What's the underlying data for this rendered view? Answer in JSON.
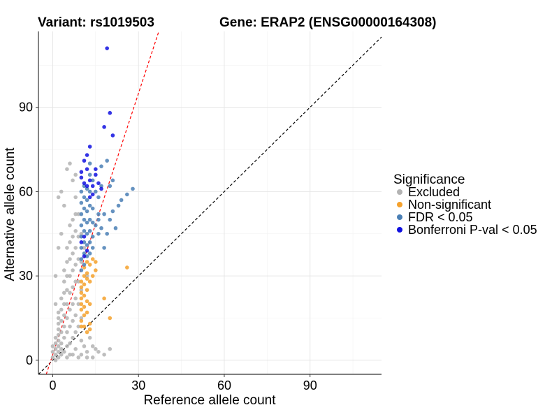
{
  "chart_data": {
    "type": "scatter",
    "title_left": "Variant: rs1019503",
    "title_right": "Gene: ERAP2 (ENSG00000164308)",
    "xlabel": "Reference allele count",
    "ylabel": "Alternative allele count",
    "xlim": [
      -5,
      115
    ],
    "ylim": [
      -5,
      117
    ],
    "x_ticks": [
      0,
      30,
      60,
      90
    ],
    "y_ticks": [
      0,
      30,
      60,
      90
    ],
    "grid": true,
    "legend_title": "Significance",
    "legend_position": "right",
    "reference_lines": [
      {
        "name": "identity",
        "slope": 1,
        "intercept": 0,
        "color": "#000000",
        "style": "dashed"
      },
      {
        "name": "trend",
        "slope": 3.1,
        "intercept": 2,
        "color": "#ff0000",
        "style": "dashed"
      }
    ],
    "series": [
      {
        "name": "Excluded",
        "color": "#b3b3b3",
        "points": [
          [
            0,
            1
          ],
          [
            0,
            3
          ],
          [
            0,
            5
          ],
          [
            1,
            0
          ],
          [
            1,
            2
          ],
          [
            1,
            4
          ],
          [
            1,
            6
          ],
          [
            1,
            8
          ],
          [
            2,
            1
          ],
          [
            2,
            3
          ],
          [
            2,
            5
          ],
          [
            2,
            7
          ],
          [
            2,
            9
          ],
          [
            2,
            11
          ],
          [
            2,
            13
          ],
          [
            2,
            15
          ],
          [
            2,
            17
          ],
          [
            3,
            2
          ],
          [
            3,
            4
          ],
          [
            3,
            6
          ],
          [
            3,
            10
          ],
          [
            3,
            14
          ],
          [
            3,
            18
          ],
          [
            3,
            22
          ],
          [
            4,
            3
          ],
          [
            4,
            8
          ],
          [
            4,
            12
          ],
          [
            4,
            16
          ],
          [
            4,
            20
          ],
          [
            4,
            24
          ],
          [
            4,
            28
          ],
          [
            4,
            32
          ],
          [
            5,
            5
          ],
          [
            5,
            10
          ],
          [
            5,
            15
          ],
          [
            5,
            20
          ],
          [
            5,
            25
          ],
          [
            5,
            30
          ],
          [
            5,
            35
          ],
          [
            5,
            40
          ],
          [
            6,
            6
          ],
          [
            6,
            12
          ],
          [
            6,
            18
          ],
          [
            6,
            24
          ],
          [
            6,
            30
          ],
          [
            6,
            36
          ],
          [
            6,
            42
          ],
          [
            6,
            48
          ],
          [
            7,
            8
          ],
          [
            7,
            14
          ],
          [
            7,
            20
          ],
          [
            7,
            26
          ],
          [
            7,
            32
          ],
          [
            7,
            38
          ],
          [
            7,
            44
          ],
          [
            7,
            50
          ],
          [
            8,
            10
          ],
          [
            8,
            16
          ],
          [
            8,
            22
          ],
          [
            8,
            28
          ],
          [
            8,
            34
          ],
          [
            8,
            40
          ],
          [
            8,
            46
          ],
          [
            8,
            52
          ],
          [
            8,
            58
          ],
          [
            9,
            12
          ],
          [
            9,
            20
          ],
          [
            9,
            28
          ],
          [
            9,
            36
          ],
          [
            9,
            44
          ],
          [
            9,
            52
          ],
          [
            10,
            15
          ],
          [
            10,
            25
          ],
          [
            10,
            35
          ],
          [
            10,
            45
          ],
          [
            3,
            60
          ],
          [
            5,
            68
          ],
          [
            6,
            70
          ],
          [
            2,
            58
          ],
          [
            7,
            64
          ],
          [
            8,
            66
          ],
          [
            4,
            55
          ],
          [
            6,
            2
          ],
          [
            8,
            4
          ],
          [
            10,
            2
          ],
          [
            12,
            3
          ],
          [
            14,
            5
          ],
          [
            16,
            3
          ],
          [
            18,
            2
          ],
          [
            20,
            4
          ],
          [
            12,
            1
          ],
          [
            9,
            1
          ],
          [
            11,
            5
          ],
          [
            13,
            8
          ],
          [
            15,
            4
          ],
          [
            7,
            2
          ],
          [
            10,
            7
          ],
          [
            14,
            1
          ],
          [
            5,
            1
          ],
          [
            3,
            45
          ],
          [
            2,
            40
          ],
          [
            1,
            30
          ],
          [
            1,
            20
          ],
          [
            11,
            40
          ],
          [
            12,
            30
          ]
        ]
      },
      {
        "name": "Non-significant",
        "color": "#f5a12c",
        "points": [
          [
            10,
            12
          ],
          [
            10,
            14
          ],
          [
            10,
            18
          ],
          [
            10,
            20
          ],
          [
            10,
            22
          ],
          [
            10,
            24
          ],
          [
            10,
            26
          ],
          [
            10,
            28
          ],
          [
            11,
            16
          ],
          [
            11,
            19
          ],
          [
            11,
            23
          ],
          [
            11,
            27
          ],
          [
            11,
            30
          ],
          [
            11,
            33
          ],
          [
            12,
            17
          ],
          [
            12,
            21
          ],
          [
            12,
            25
          ],
          [
            12,
            29
          ],
          [
            12,
            31
          ],
          [
            12,
            35
          ],
          [
            13,
            11
          ],
          [
            13,
            13
          ],
          [
            13,
            20
          ],
          [
            13,
            28
          ],
          [
            13,
            34
          ],
          [
            14,
            30
          ],
          [
            14,
            36
          ],
          [
            15,
            32
          ],
          [
            15,
            35
          ],
          [
            18,
            22
          ],
          [
            20,
            15
          ],
          [
            26,
            33
          ],
          [
            12,
            10
          ],
          [
            11,
            12
          ]
        ]
      },
      {
        "name": "FDR < 0.05",
        "color": "#4a7fb5",
        "points": [
          [
            10,
            32
          ],
          [
            10,
            36
          ],
          [
            10,
            40
          ],
          [
            10,
            44
          ],
          [
            10,
            48
          ],
          [
            10,
            52
          ],
          [
            10,
            56
          ],
          [
            10,
            60
          ],
          [
            11,
            34
          ],
          [
            11,
            38
          ],
          [
            11,
            42
          ],
          [
            11,
            46
          ],
          [
            11,
            50
          ],
          [
            11,
            54
          ],
          [
            11,
            58
          ],
          [
            11,
            62
          ],
          [
            12,
            37
          ],
          [
            12,
            41
          ],
          [
            12,
            45
          ],
          [
            12,
            49
          ],
          [
            12,
            53
          ],
          [
            12,
            57
          ],
          [
            12,
            61
          ],
          [
            13,
            38
          ],
          [
            13,
            42
          ],
          [
            13,
            46
          ],
          [
            13,
            50
          ],
          [
            13,
            55
          ],
          [
            13,
            60
          ],
          [
            13,
            66
          ],
          [
            14,
            40
          ],
          [
            14,
            44
          ],
          [
            14,
            49
          ],
          [
            14,
            54
          ],
          [
            14,
            64
          ],
          [
            15,
            48
          ],
          [
            15,
            60
          ],
          [
            16,
            45
          ],
          [
            16,
            50
          ],
          [
            16,
            52
          ],
          [
            16,
            58
          ],
          [
            17,
            47
          ],
          [
            17,
            62
          ],
          [
            18,
            40
          ],
          [
            18,
            52
          ],
          [
            19,
            45
          ],
          [
            20,
            50
          ],
          [
            21,
            53
          ],
          [
            22,
            47
          ],
          [
            23,
            55
          ],
          [
            24,
            57
          ],
          [
            26,
            59
          ],
          [
            28,
            61
          ],
          [
            17,
            69
          ],
          [
            21,
            64
          ],
          [
            20,
            62
          ],
          [
            19,
            71
          ],
          [
            13,
            70
          ]
        ]
      },
      {
        "name": "Bonferroni P-val < 0.05",
        "color": "#1010e0",
        "points": [
          [
            19,
            111
          ],
          [
            20,
            88
          ],
          [
            18,
            83
          ],
          [
            21,
            80
          ],
          [
            12,
            73
          ],
          [
            13,
            76
          ],
          [
            10,
            65
          ],
          [
            11,
            63
          ],
          [
            12,
            68
          ],
          [
            13,
            64
          ],
          [
            14,
            62
          ],
          [
            16,
            63
          ],
          [
            17,
            61
          ],
          [
            15,
            66
          ],
          [
            15,
            68
          ],
          [
            10,
            67
          ],
          [
            11,
            71
          ],
          [
            12,
            62
          ],
          [
            13,
            58
          ],
          [
            11,
            44
          ],
          [
            12,
            39
          ],
          [
            11,
            37
          ],
          [
            10,
            42
          ],
          [
            14,
            59
          ]
        ]
      }
    ]
  }
}
